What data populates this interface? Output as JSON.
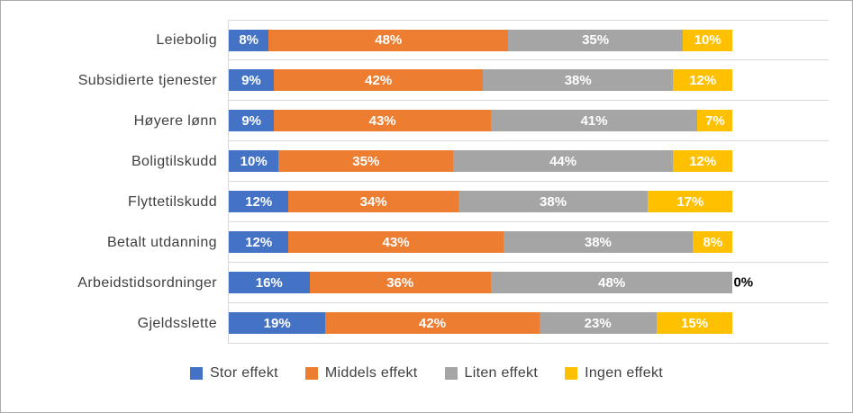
{
  "chart_data": {
    "type": "bar",
    "orientation": "horizontal",
    "stacked": true,
    "title": "",
    "xlabel": "",
    "ylabel": "",
    "xlim": [
      0,
      100
    ],
    "grid": true,
    "legend_position": "bottom",
    "value_suffix": "%",
    "label_color_inside": "#FFFFFF",
    "label_color_outside": "#000000",
    "categories": [
      "Leiebolig",
      "Subsidierte tjenester",
      "Høyere lønn",
      "Boligtilskudd",
      "Flyttetilskudd",
      "Betalt utdanning",
      "Arbeidstidsordninger",
      "Gjeldsslette"
    ],
    "series": [
      {
        "name": "Stor effekt",
        "color": "#4472C4",
        "values": [
          8,
          9,
          9,
          10,
          12,
          12,
          16,
          19
        ]
      },
      {
        "name": "Middels effekt",
        "color": "#ED7D31",
        "values": [
          48,
          42,
          43,
          35,
          34,
          43,
          36,
          42
        ]
      },
      {
        "name": "Liten effekt",
        "color": "#A5A5A5",
        "values": [
          35,
          38,
          41,
          44,
          38,
          38,
          48,
          23
        ]
      },
      {
        "name": "Ingen effekt",
        "color": "#FFC000",
        "values": [
          10,
          12,
          7,
          12,
          17,
          8,
          0,
          15
        ]
      }
    ]
  }
}
